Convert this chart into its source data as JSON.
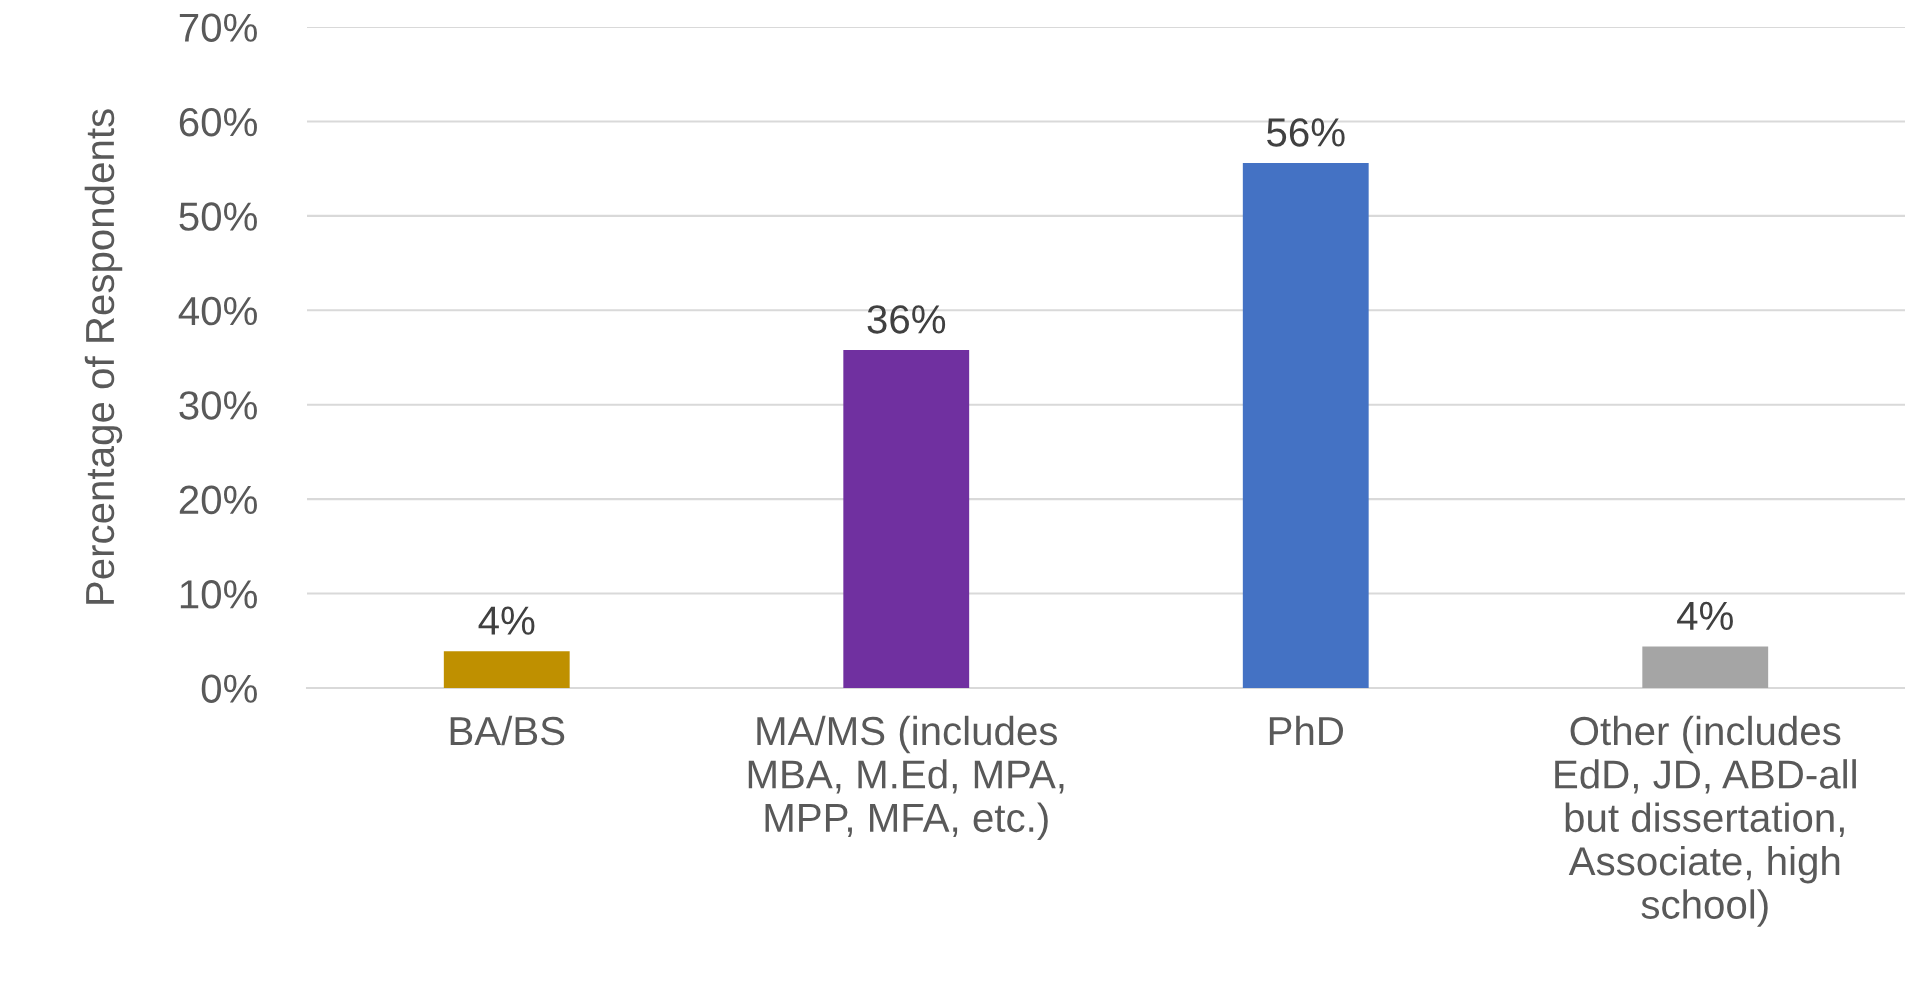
{
  "chart_data": {
    "type": "bar",
    "ylabel": "Percentage of Respondents",
    "categories": [
      "BA/BS",
      "MA/MS (includes\nMBA, M.Ed, MPA,\nMPP, MFA, etc.)",
      "PhD",
      "Other (includes\nEdD, JD, ABD-all\nbut dissertation,\nAssociate, high\nschool)"
    ],
    "values": [
      3.9,
      35.8,
      55.6,
      4.4
    ],
    "colors": [
      "#bf9000",
      "#7030a0",
      "#4472c4",
      "#a5a5a5"
    ],
    "value_labels": [
      "4%",
      "36%",
      "56%",
      "4%"
    ],
    "ylim": [
      0,
      70
    ],
    "yticks": [
      {
        "value": 0,
        "label": "0%"
      },
      {
        "value": 10,
        "label": "10%"
      },
      {
        "value": 20,
        "label": "20%"
      },
      {
        "value": 30,
        "label": "30%"
      },
      {
        "value": 40,
        "label": "40%"
      },
      {
        "value": 50,
        "label": "50%"
      },
      {
        "value": 60,
        "label": "60%"
      },
      {
        "value": 70,
        "label": "70%"
      }
    ],
    "grid": "y",
    "legend": false
  }
}
